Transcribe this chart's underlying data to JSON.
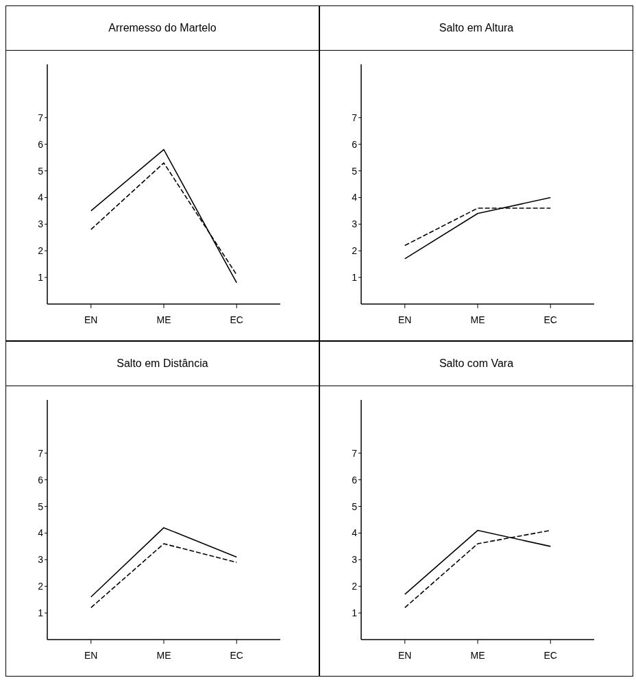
{
  "chart_data": [
    {
      "type": "line",
      "title": "Arremesso do Martelo",
      "categories": [
        "EN",
        "ME",
        "EC"
      ],
      "ylim": [
        0,
        9
      ],
      "yticks": [
        1,
        2,
        3,
        4,
        5,
        6,
        7
      ],
      "marker": "none",
      "series": [
        {
          "color": "#000000",
          "line_style": "solid",
          "values": [
            3.5,
            5.8,
            0.8
          ]
        },
        {
          "color": "#000000",
          "line_style": "dashed",
          "values": [
            2.8,
            5.3,
            1.1
          ]
        }
      ]
    },
    {
      "type": "line",
      "title": "Salto em Altura",
      "categories": [
        "EN",
        "ME",
        "EC"
      ],
      "ylim": [
        0,
        9
      ],
      "yticks": [
        1,
        2,
        3,
        4,
        5,
        6,
        7
      ],
      "marker": "none",
      "series": [
        {
          "color": "#000000",
          "line_style": "solid",
          "values": [
            1.7,
            3.4,
            4.0
          ]
        },
        {
          "color": "#000000",
          "line_style": "dashed",
          "values": [
            2.2,
            3.6,
            3.6
          ]
        }
      ]
    },
    {
      "type": "line",
      "title": "Salto em Distância",
      "categories": [
        "EN",
        "ME",
        "EC"
      ],
      "ylim": [
        0,
        9
      ],
      "yticks": [
        1,
        2,
        3,
        4,
        5,
        6,
        7
      ],
      "marker": "none",
      "series": [
        {
          "color": "#000000",
          "line_style": "solid",
          "values": [
            1.6,
            4.2,
            3.1
          ]
        },
        {
          "color": "#000000",
          "line_style": "dashed",
          "values": [
            1.2,
            3.6,
            2.9
          ]
        }
      ]
    },
    {
      "type": "line",
      "title": "Salto com Vara",
      "categories": [
        "EN",
        "ME",
        "EC"
      ],
      "ylim": [
        0,
        9
      ],
      "yticks": [
        1,
        2,
        3,
        4,
        5,
        6,
        7
      ],
      "marker": "none",
      "series": [
        {
          "color": "#000000",
          "line_style": "solid",
          "values": [
            1.7,
            4.1,
            3.5
          ]
        },
        {
          "color": "#000000",
          "line_style": "dashed",
          "values": [
            1.2,
            3.6,
            4.1
          ]
        }
      ]
    }
  ]
}
